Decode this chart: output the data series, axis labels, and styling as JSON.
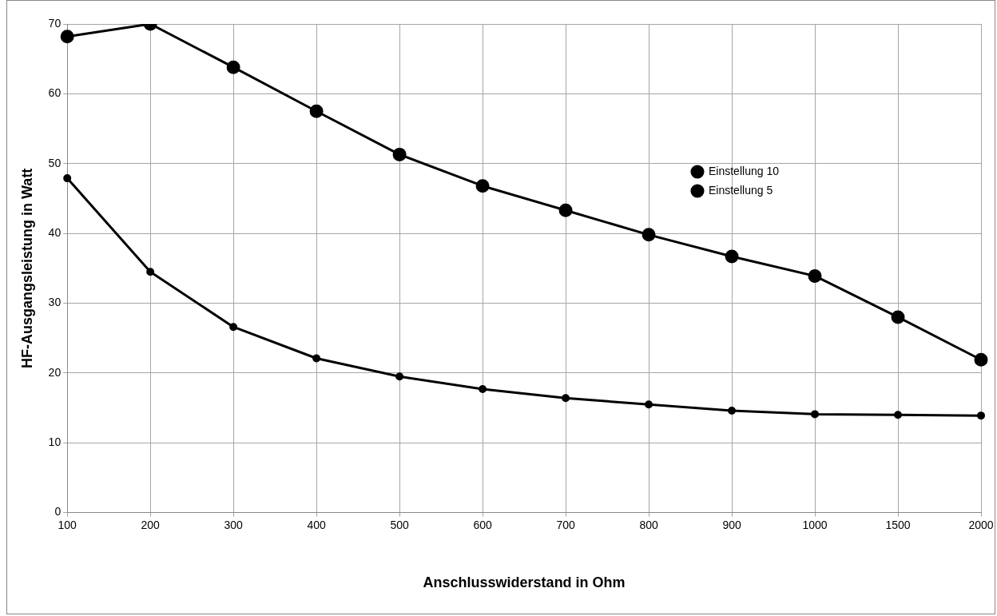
{
  "chart_data": {
    "type": "line",
    "xlabel": "Anschlusswiderstand in Ohm",
    "ylabel": "HF-Ausgangsleistung in Watt",
    "categories": [
      "100",
      "200",
      "300",
      "400",
      "500",
      "600",
      "700",
      "800",
      "900",
      "1000",
      "1500",
      "2000"
    ],
    "series": [
      {
        "name": "Einstellung 10",
        "color": "#000000",
        "values": [
          68.2,
          70.0,
          63.8,
          57.5,
          51.3,
          46.8,
          43.3,
          39.8,
          36.7,
          33.9,
          28.0,
          21.9
        ]
      },
      {
        "name": "Einstellung 5",
        "color": "#000000",
        "values": [
          47.9,
          34.5,
          26.6,
          22.1,
          19.5,
          17.7,
          16.4,
          15.5,
          14.6,
          14.1,
          14.0,
          13.9
        ]
      }
    ],
    "ylim": [
      0,
      70
    ],
    "yticks": [
      0,
      10,
      20,
      30,
      40,
      50,
      60,
      70
    ],
    "grid": true,
    "legend": "right",
    "marker": "circle",
    "line_style": "solid"
  }
}
